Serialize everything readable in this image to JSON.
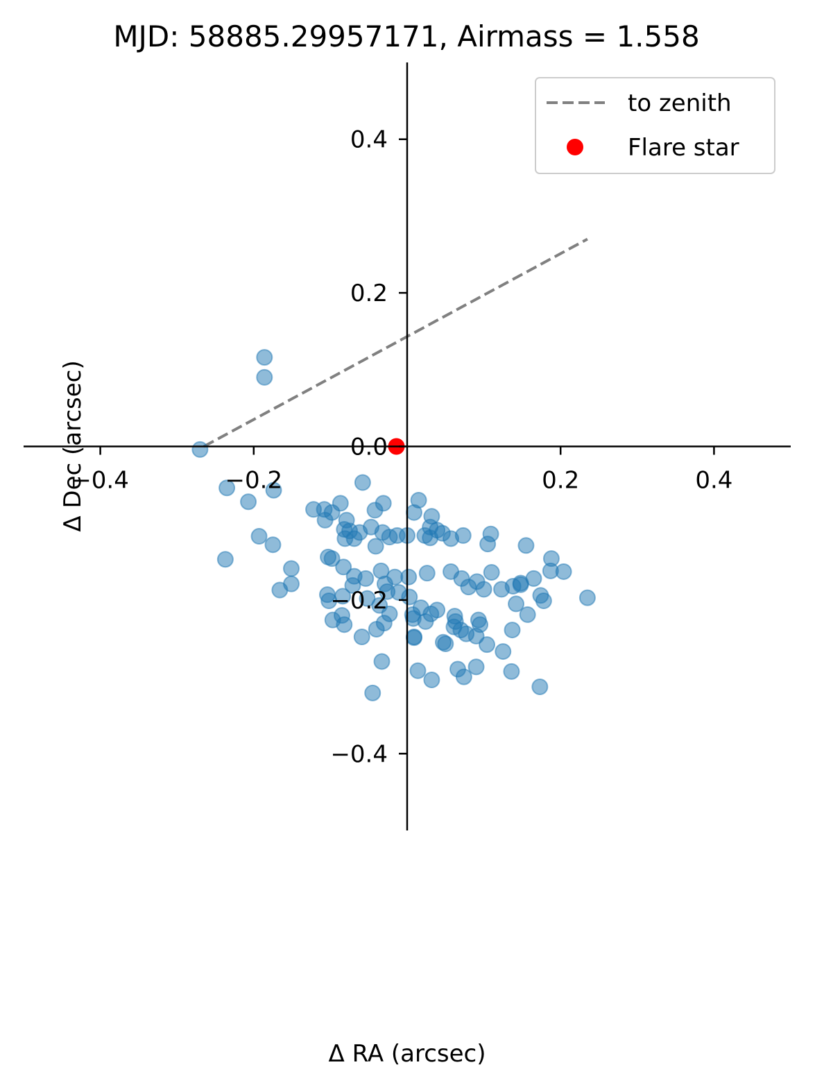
{
  "chart_data": {
    "type": "scatter",
    "title": "MJD: 58885.29957171, Airmass = 1.558",
    "xlabel": "Δ RA (arcsec)",
    "ylabel": "Δ Dec (arcsec)",
    "xlim": [
      -0.5,
      0.5
    ],
    "ylim": [
      -0.5,
      0.5
    ],
    "x_ticks": [
      -0.4,
      -0.2,
      0.2,
      0.4
    ],
    "x_tick_labels": [
      "−0.4",
      "−0.2",
      "0.2",
      "0.4"
    ],
    "y_ticks": [
      -0.4,
      -0.2,
      0.0,
      0.2,
      0.4
    ],
    "y_tick_labels": [
      "−0.4",
      "−0.2",
      "0.0",
      "0.2",
      "0.4"
    ],
    "spines": "centered at origin",
    "grid": false,
    "legend": {
      "placement": "top-right",
      "entries": [
        {
          "label": "to zenith",
          "style": "dashed-line",
          "color": "#808080"
        },
        {
          "label": "Flare star",
          "style": "marker",
          "color": "#ff0000"
        }
      ]
    },
    "series": [
      {
        "name": "to zenith",
        "kind": "line",
        "color": "#808080",
        "dash": true,
        "x": [
          -0.265,
          0.235
        ],
        "y": [
          0.0,
          0.27
        ]
      },
      {
        "kind": "scatter",
        "color": "#1f77b4",
        "alpha": 0.5,
        "x": [
          -0.27,
          -0.186,
          -0.186,
          -0.174,
          -0.235,
          -0.207,
          -0.193,
          -0.237,
          -0.175,
          -0.151,
          -0.087,
          -0.122,
          -0.108,
          -0.098,
          -0.107,
          -0.079,
          -0.082,
          -0.075,
          -0.081,
          -0.069,
          -0.062,
          -0.047,
          -0.032,
          -0.023,
          -0.041,
          -0.013,
          -0.031,
          -0.058,
          -0.042,
          -0.0,
          0.015,
          0.009,
          0.032,
          0.023,
          0.03,
          0.039,
          0.057,
          0.073,
          0.109,
          0.105,
          0.155,
          0.188,
          -0.103,
          -0.098,
          -0.083,
          -0.069,
          -0.054,
          -0.034,
          -0.029,
          -0.016,
          0.002,
          0.026,
          0.03,
          0.046,
          0.057,
          0.071,
          0.08,
          0.091,
          0.1,
          0.11,
          0.123,
          0.138,
          0.148,
          0.165,
          0.187,
          0.204,
          0.235,
          -0.166,
          -0.151,
          -0.102,
          -0.097,
          -0.085,
          -0.082,
          -0.059,
          -0.04,
          -0.023,
          0.007,
          0.009,
          0.024,
          0.039,
          0.062,
          0.061,
          0.077,
          0.093,
          0.095,
          0.137,
          0.142,
          0.148,
          0.157,
          0.174,
          0.178,
          0.125,
          0.104,
          0.09,
          0.07,
          0.047,
          0.031,
          0.018,
          0.003,
          -0.011,
          -0.026,
          -0.036,
          -0.052,
          -0.071,
          -0.084,
          -0.104,
          0.063,
          0.008,
          -0.03,
          0.009,
          0.066,
          0.136,
          0.173,
          -0.045,
          0.014,
          -0.033,
          0.032,
          0.074,
          0.05,
          0.09
        ],
        "y": [
          -0.004,
          0.116,
          0.09,
          -0.057,
          -0.054,
          -0.072,
          -0.117,
          -0.147,
          -0.128,
          -0.159,
          -0.074,
          -0.082,
          -0.082,
          -0.086,
          -0.096,
          -0.096,
          -0.108,
          -0.11,
          -0.12,
          -0.12,
          -0.112,
          -0.105,
          -0.112,
          -0.118,
          -0.13,
          -0.116,
          -0.074,
          -0.047,
          -0.083,
          -0.116,
          -0.07,
          -0.086,
          -0.091,
          -0.116,
          -0.105,
          -0.109,
          -0.12,
          -0.116,
          -0.114,
          -0.127,
          -0.129,
          -0.146,
          -0.144,
          -0.146,
          -0.157,
          -0.169,
          -0.172,
          -0.162,
          -0.179,
          -0.17,
          -0.17,
          -0.165,
          -0.119,
          -0.113,
          -0.163,
          -0.172,
          -0.183,
          -0.176,
          -0.186,
          -0.164,
          -0.186,
          -0.182,
          -0.178,
          -0.172,
          -0.162,
          -0.163,
          -0.197,
          -0.187,
          -0.179,
          -0.201,
          -0.226,
          -0.22,
          -0.232,
          -0.248,
          -0.238,
          -0.218,
          -0.219,
          -0.248,
          -0.228,
          -0.213,
          -0.221,
          -0.235,
          -0.244,
          -0.226,
          -0.232,
          -0.239,
          -0.205,
          -0.18,
          -0.219,
          -0.194,
          -0.201,
          -0.267,
          -0.258,
          -0.247,
          -0.239,
          -0.255,
          -0.218,
          -0.21,
          -0.196,
          -0.19,
          -0.189,
          -0.207,
          -0.198,
          -0.181,
          -0.195,
          -0.193,
          -0.228,
          -0.224,
          -0.23,
          -0.249,
          -0.29,
          -0.293,
          -0.313,
          -0.321,
          -0.292,
          -0.28,
          -0.304,
          -0.3,
          -0.257,
          -0.287
        ]
      },
      {
        "name": "Flare star",
        "kind": "scatter",
        "color": "#ff0000",
        "x": [
          -0.014
        ],
        "y": [
          0.0
        ]
      }
    ]
  }
}
